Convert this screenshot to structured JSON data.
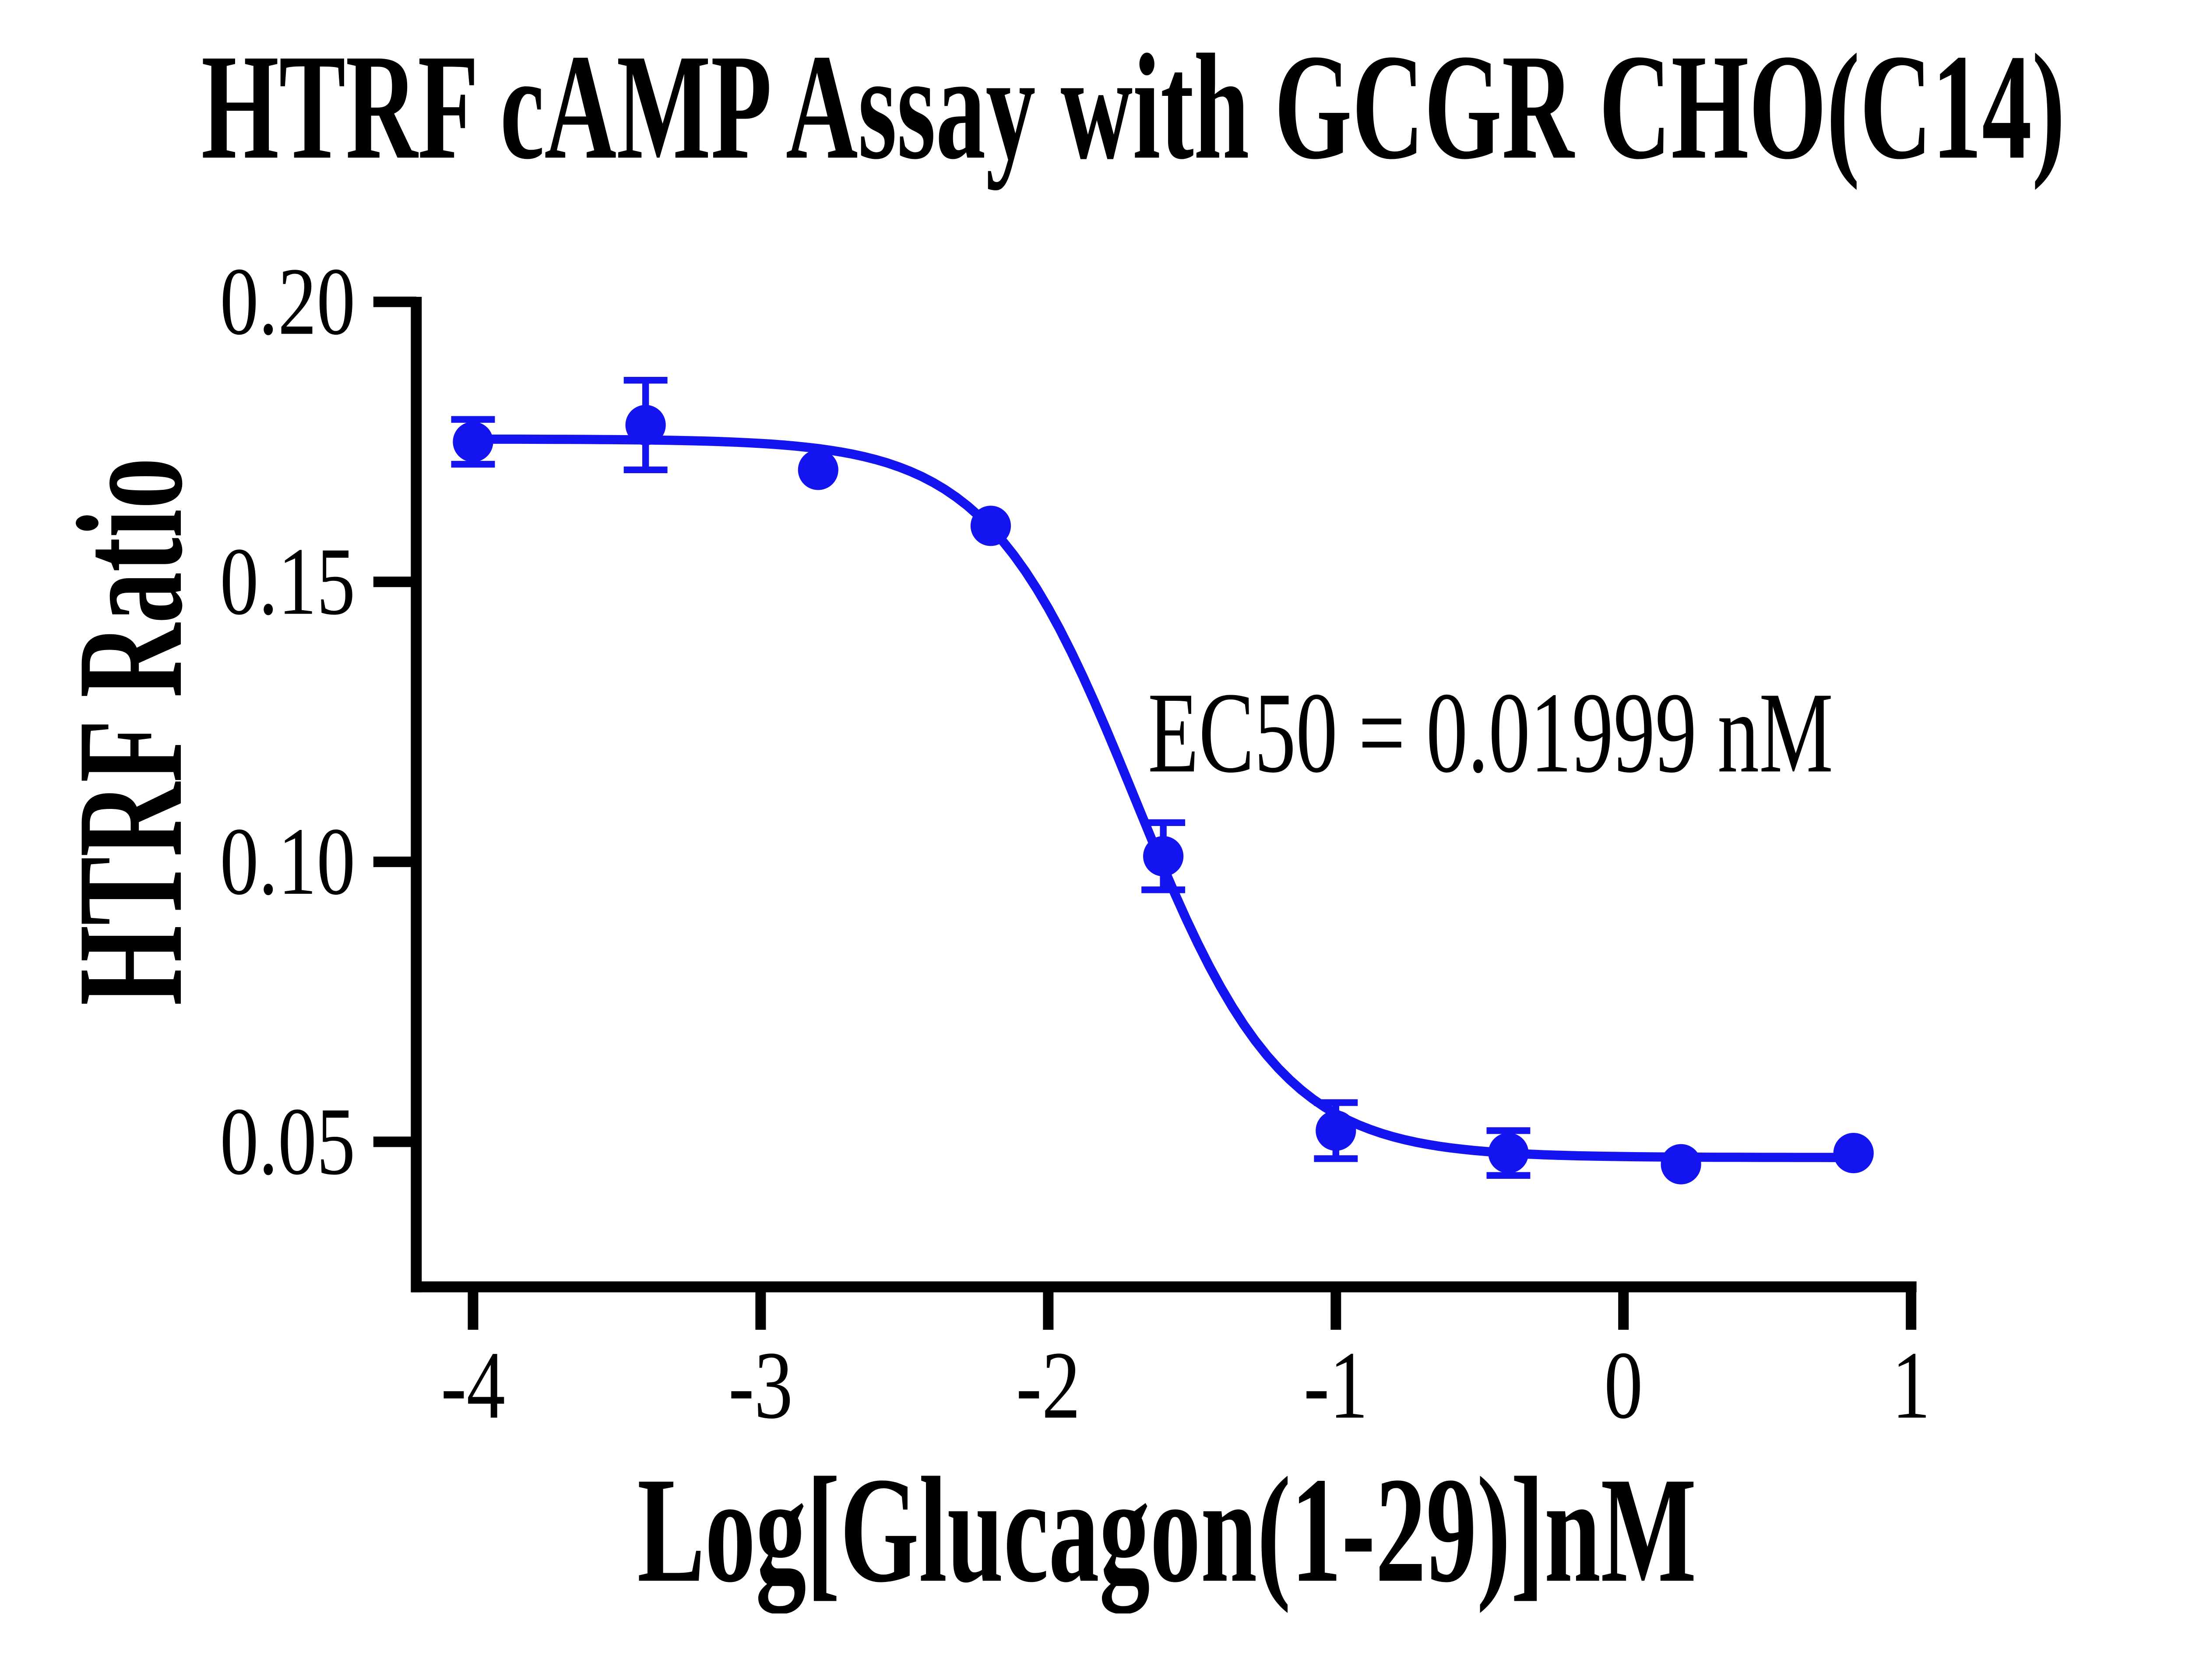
{
  "chart": {
    "title": "HTRF cAMP Assay with GCGR CHO(C14)",
    "y_axis_label": "HTRF Ratio",
    "x_axis_label": "Log[Glucagon(1-29)]nM",
    "annotation": "EC50 = 0.01999 nM"
  },
  "chart_data": {
    "type": "scatter",
    "title": "HTRF cAMP Assay with GCGR CHO(C14)",
    "xlabel": "Log[Glucagon(1-29)]nM",
    "ylabel": "HTRF Ratio",
    "annotation": "EC50 = 0.01999 nM",
    "grid": false,
    "legend": "none",
    "xlim": [
      -4.2,
      1.05
    ],
    "ylim": [
      0.024,
      0.2
    ],
    "x_ticks": {
      "values": [
        -4,
        -3,
        -2,
        -1,
        0,
        1
      ],
      "labels": [
        "-4",
        "-3",
        "-2",
        "-1",
        "0",
        "1"
      ]
    },
    "y_ticks": {
      "values": [
        0.2,
        0.15,
        0.1,
        0.05
      ],
      "labels": [
        "0.20",
        "0.15",
        "0.10",
        "0.05"
      ]
    },
    "series": [
      {
        "name": "Glucagon(1-29)",
        "marker": "circle",
        "color": "#1414F0",
        "x": [
          -4.0,
          -3.4,
          -2.8,
          -2.2,
          -1.6,
          -1.0,
          -0.4,
          0.2,
          0.8
        ],
        "y": [
          0.175,
          0.178,
          0.17,
          0.16,
          0.101,
          0.052,
          0.048,
          0.046,
          0.048
        ],
        "error_sd": [
          0.004,
          0.008,
          0,
          0,
          0.006,
          0.005,
          0.004,
          0,
          0
        ]
      }
    ],
    "fit_curve": {
      "model": "sigmoidal dose-response (4PL)",
      "top": 0.1755,
      "bottom": 0.0472,
      "log_ec50": -1.699,
      "hill_slope": -1.7,
      "ec50_nM": 0.01999,
      "x_range": [
        -4.0,
        0.8
      ],
      "color": "#1414F0"
    },
    "colors": {
      "series": "#1414F0",
      "axes": "#000000",
      "background": "#FFFFFF"
    }
  }
}
